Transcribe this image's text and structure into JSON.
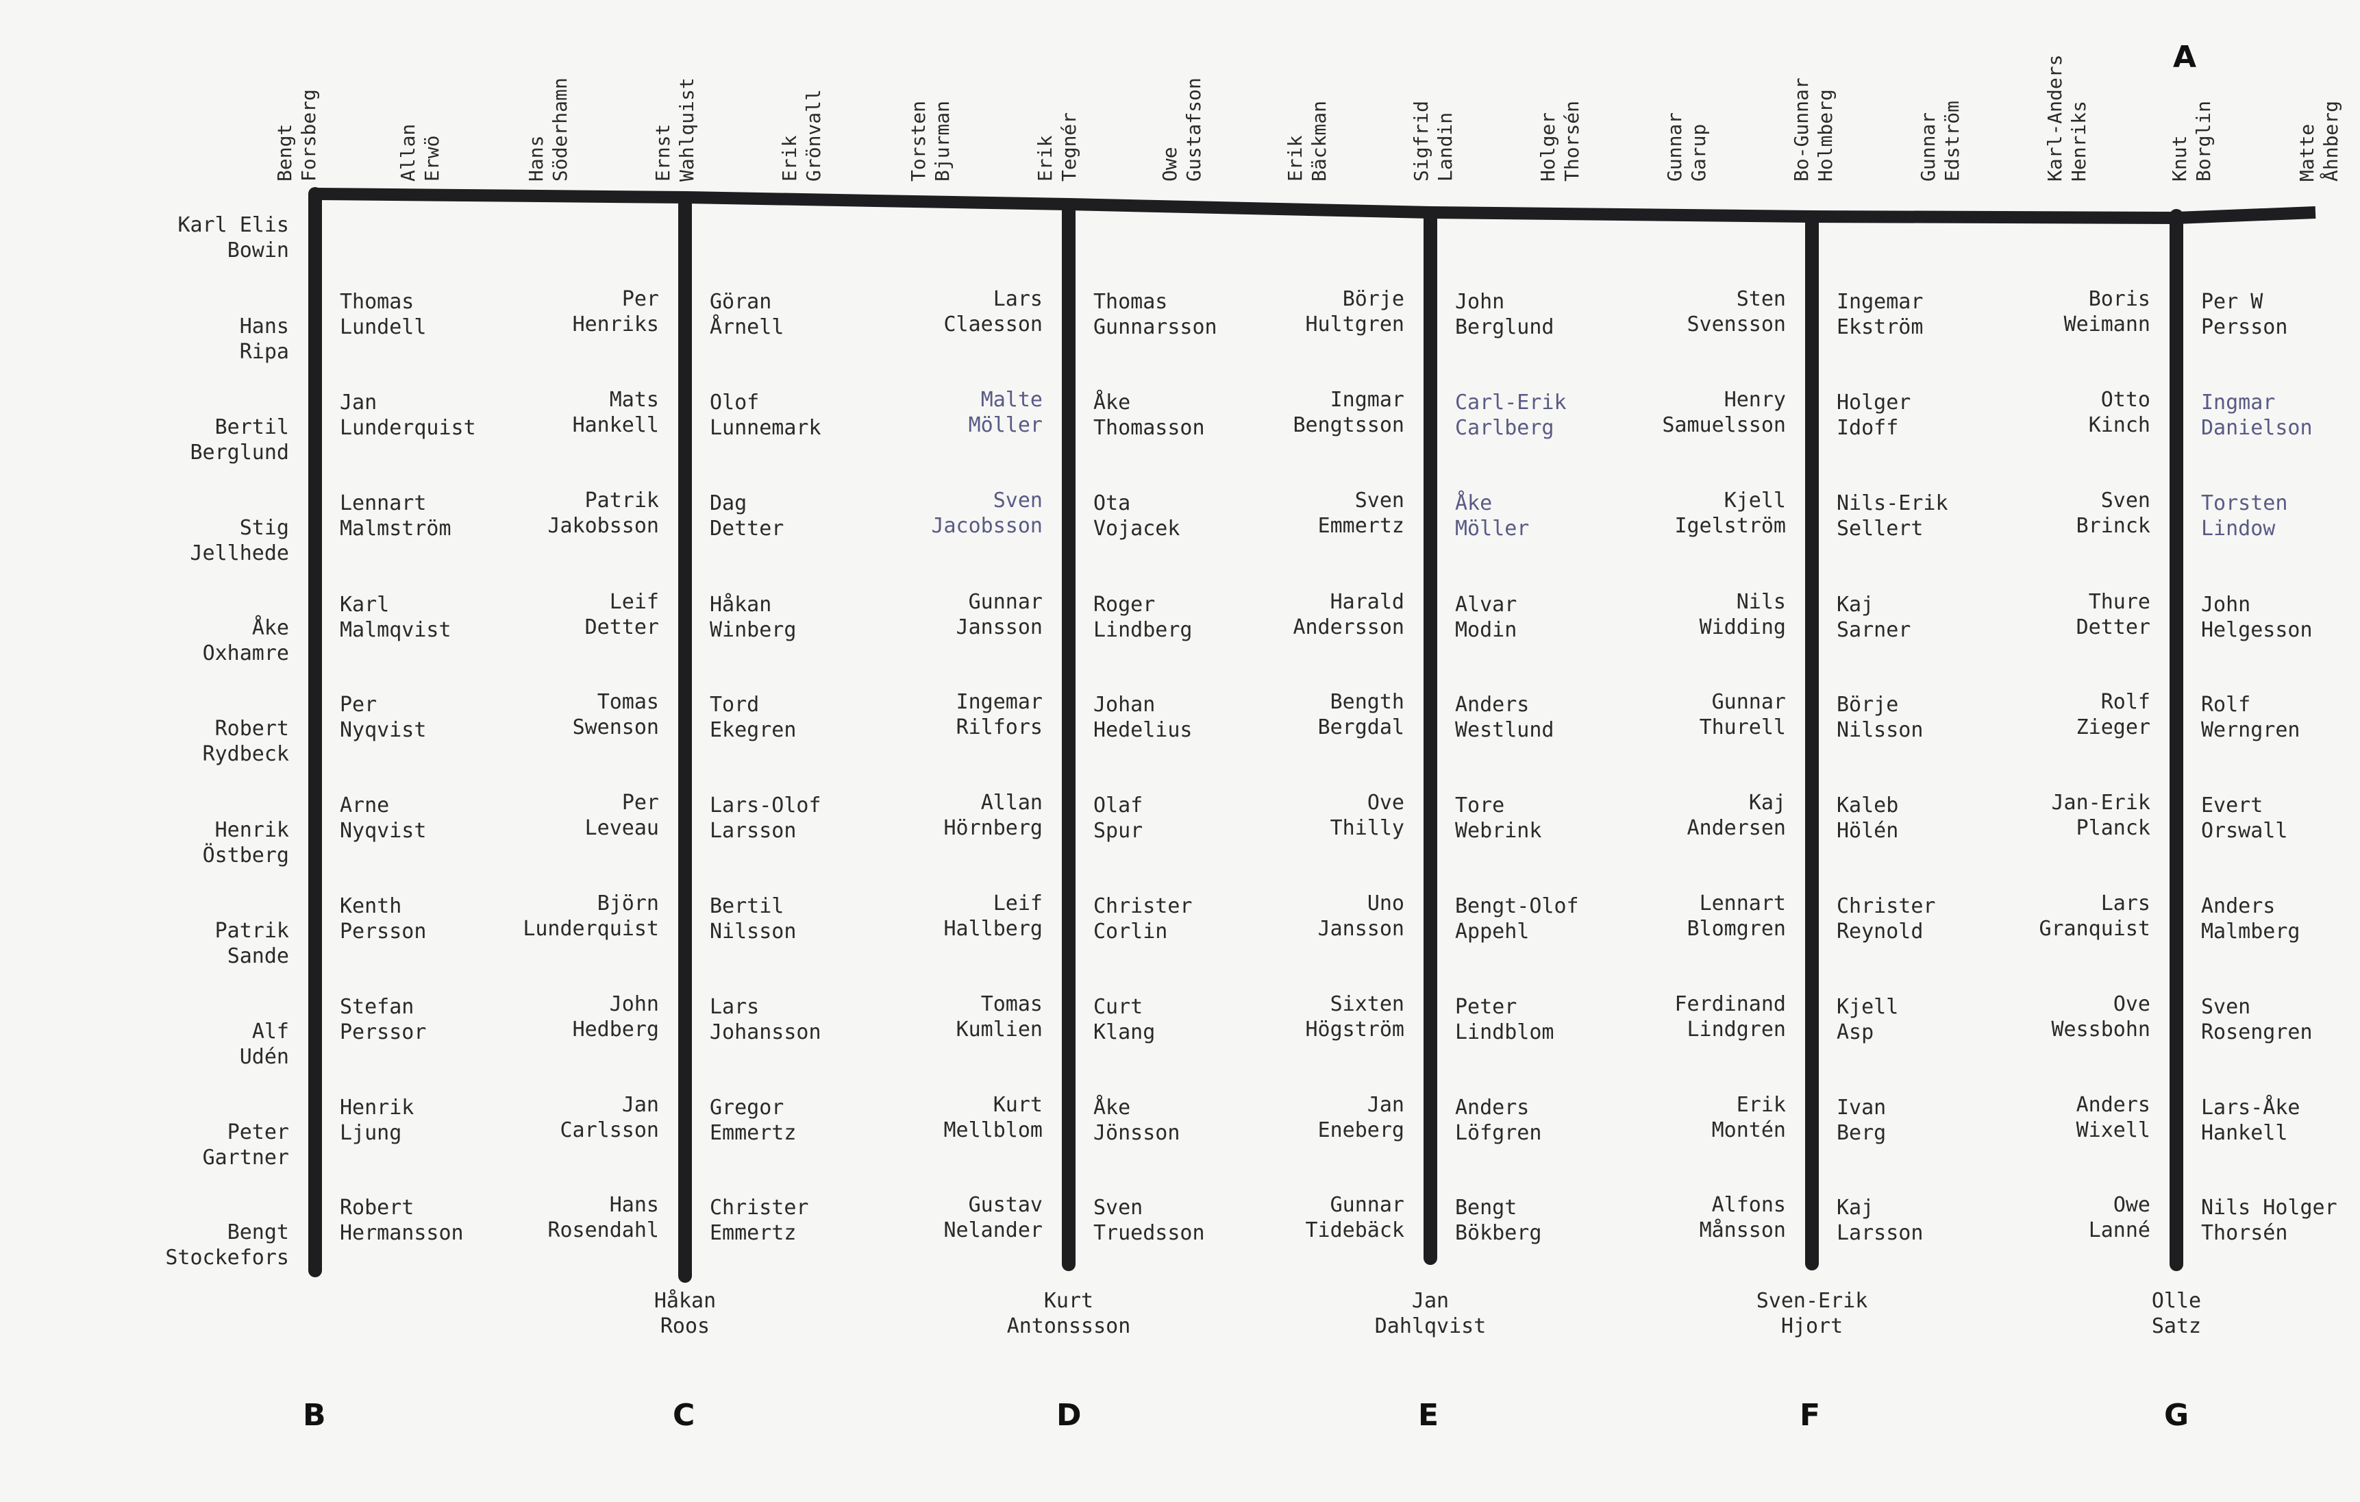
{
  "title_letter": "A",
  "vertical_names": [
    "Bengt\nForsberg",
    "Allan\nErwö",
    "Hans\nSöderhamn",
    "Ernst\nWahlquist",
    "Erik\nGrönvall",
    "Torsten\nBjurman",
    "Erik\nTegnér",
    "Owe\nGustafson",
    "Erik\nBäckman",
    "Sigfrid\nLandin",
    "Holger\nThorsén",
    "Gunnar\nGarup",
    "Bo-Gunnar\nHolmberg",
    "Gunnar\nEdström",
    "Karl-Anders\nHenriks",
    "Knut\nBorglin",
    "Matte\nÅhnberg"
  ],
  "row_labels": [
    "Karl Elis\nBowin",
    "Hans\nRipa",
    "Bertil\nBerglund",
    "Stig\nJellhede",
    "Åke\nOxhamre",
    "Robert\nRydbeck",
    "Henrik\nÖstberg",
    "Patrik\nSande",
    "Alf\nUdén",
    "Peter\nGartner",
    "Bengt\nStockefors"
  ],
  "groups": [
    {
      "left": [],
      "right": [
        "Thomas\nLundell",
        "Jan\nLunderquist",
        "Lennart\nMalmström",
        "Karl\nMalmqvist",
        "Per\nNyqvist",
        "Arne\nNyqvist",
        "Kenth\nPersson",
        "Stefan\nPerssor",
        "Henrik\nLjung",
        "Robert\nHermansson"
      ],
      "bottom": "",
      "letter": "B"
    },
    {
      "left": [
        "Per\nHenriks",
        "Mats\nHankell",
        "Patrik\nJakobsson",
        "Leif\nDetter",
        "Tomas\nSwenson",
        "Per\nLeveau",
        "Björn\nLunderquist",
        "John\nHedberg",
        "Jan\nCarlsson",
        "Hans\nRosendahl"
      ],
      "right": [
        "Göran\nÅrnell",
        "Olof\nLunnemark",
        "Dag\nDetter",
        "Håkan\nWinberg",
        "Tord\nEkegren",
        "Lars-Olof\nLarsson",
        "Bertil\nNilsson",
        "Lars\nJohansson",
        "Gregor\nEmmertz",
        "Christer\nEmmertz"
      ],
      "bottom": "Håkan\nRoos",
      "letter": "C"
    },
    {
      "left": [
        "Lars\nClaesson",
        "Malte\nMöller",
        "Sven\nJacobsson",
        "Gunnar\nJansson",
        "Ingemar\nRilfors",
        "Allan\nHörnberg",
        "Leif\nHallberg",
        "Tomas\nKumlien",
        "Kurt\nMellblom",
        "Gustav\nNelander"
      ],
      "right": [
        "Thomas\nGunnarsson",
        "Åke\nThomasson",
        "Ota\nVojacek",
        "Roger\nLindberg",
        "Johan\nHedelius",
        "Olaf\nSpur",
        "Christer\nCorlin",
        "Curt\nKlang",
        "Åke\nJönsson",
        "Sven\nTruedsson"
      ],
      "bottom": "Kurt\nAntonssson",
      "letter": "D"
    },
    {
      "left": [
        "Börje\nHultgren",
        "Ingmar\nBengtsson",
        "Sven\nEmmertz",
        "Harald\nAndersson",
        "Bength\nBergdal",
        "Ove\nThilly",
        "Uno\nJansson",
        "Sixten\nHögström",
        "Jan\nEneberg",
        "Gunnar\nTidebäck"
      ],
      "right": [
        "John\nBerglund",
        "Carl-Erik\nCarlberg",
        "Åke\nMöller",
        "Alvar\nModin",
        "Anders\nWestlund",
        "Tore\nWebrink",
        "Bengt-Olof\nAppehl",
        "Peter\nLindblom",
        "Anders\nLöfgren",
        "Bengt\nBökberg"
      ],
      "bottom": "Jan\nDahlqvist",
      "letter": "E"
    },
    {
      "left": [
        "Sten\nSvensson",
        "Henry\nSamuelsson",
        "Kjell\nIgelström",
        "Nils\nWidding",
        "Gunnar\nThurell",
        "Kaj\nAndersen",
        "Lennart\nBlomgren",
        "Ferdinand\nLindgren",
        "Erik\nMontén",
        "Alfons\nMånsson"
      ],
      "right": [
        "Ingemar\nEkström",
        "Holger\nIdoff",
        "Nils-Erik\nSellert",
        "Kaj\nSarner",
        "Börje\nNilsson",
        "Kaleb\nHölén",
        "Christer\nReynold",
        "Kjell\nAsp",
        "Ivan\nBerg",
        "Kaj\nLarsson"
      ],
      "bottom": "Sven-Erik\nHjort",
      "letter": "F"
    },
    {
      "left": [
        "Boris\nWeimann",
        "Otto\nKinch",
        "Sven\nBrinck",
        "Thure\nDetter",
        "Rolf\nZieger",
        "Jan-Erik\nPlanck",
        "Lars\nGranquist",
        "Ove\nWessbohn",
        "Anders\nWixell",
        "Owe\nLanné"
      ],
      "right": [
        "Per W\nPersson",
        "Ingmar\nDanielson",
        "Torsten\nLindow",
        "John\nHelgesson",
        "Rolf\nWerngren",
        "Evert\nOrswall",
        "Anders\nMalmberg",
        "Sven\nRosengren",
        "Lars-Åke\nHankell",
        "Nils Holger\nThorsén"
      ],
      "bottom": "Olle\nSatz",
      "letter": "G"
    }
  ],
  "faded_names": [
    "Malte\nMöller",
    "Sven\nJacobsson",
    "Carl-Erik\nCarlberg",
    "Åke\nMöller",
    "Ingmar\nDanielson",
    "Torsten\nLindow"
  ],
  "colors": {
    "ink": "#2a2a2a",
    "line": "#1e1e20",
    "paper": "#f6f6f4",
    "faded": "#5a5a86"
  }
}
